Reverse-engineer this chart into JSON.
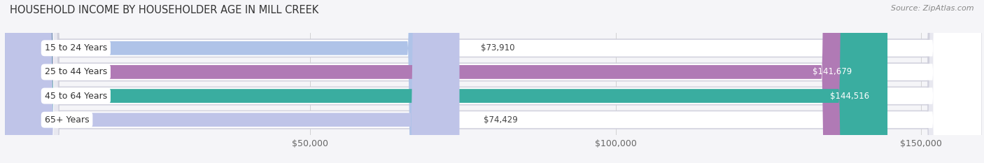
{
  "title": "HOUSEHOLD INCOME BY HOUSEHOLDER AGE IN MILL CREEK",
  "source": "Source: ZipAtlas.com",
  "categories": [
    "15 to 24 Years",
    "25 to 44 Years",
    "45 to 64 Years",
    "65+ Years"
  ],
  "values": [
    73910,
    141679,
    144516,
    74429
  ],
  "bar_colors": [
    "#afc3e8",
    "#b07ab5",
    "#3aada0",
    "#bfc4e8"
  ],
  "track_color": "#e8e8f0",
  "track_border_color": "#d0d0dc",
  "label_colors": [
    "#444444",
    "#ffffff",
    "#ffffff",
    "#444444"
  ],
  "value_labels": [
    "$73,910",
    "$141,679",
    "$144,516",
    "$74,429"
  ],
  "xmin": 0,
  "xmax": 160000,
  "display_max": 155000,
  "xticks": [
    50000,
    100000,
    150000
  ],
  "xticklabels": [
    "$50,000",
    "$100,000",
    "$150,000"
  ],
  "title_fontsize": 10.5,
  "label_fontsize": 9,
  "value_fontsize": 8.5,
  "source_fontsize": 8,
  "background_color": "#f5f5f8",
  "white": "#ffffff"
}
